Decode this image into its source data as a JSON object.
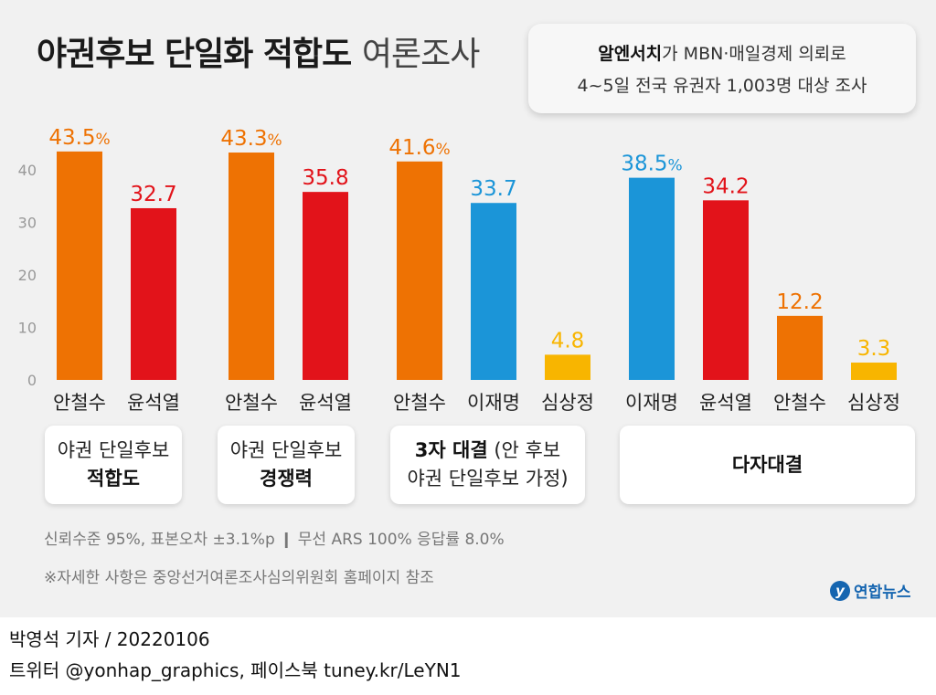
{
  "header": {
    "title_bold": "야권후보 단일화 적합도",
    "title_light": "여론조사"
  },
  "source": {
    "pollster": "알엔서치",
    "line1_rest": "가 MBN·매일경제 의뢰로",
    "line2": "4~5일 전국 유권자 1,003명 대상 조사"
  },
  "colors": {
    "orange": "#EE7203",
    "red": "#E2131A",
    "blue": "#1B95D8",
    "yellow": "#F8B500"
  },
  "chart_data": {
    "type": "bar",
    "ylim": [
      0,
      45
    ],
    "yticks": [
      0,
      10,
      20,
      30,
      40
    ],
    "grid": false,
    "groups": [
      {
        "label_plain": "야권 단일후보",
        "label_bold": "적합도",
        "bars": [
          {
            "name": "안철수",
            "value": 43.5,
            "label": "43.5",
            "suffix": "%",
            "color": "#EE7203"
          },
          {
            "name": "윤석열",
            "value": 32.7,
            "label": "32.7",
            "suffix": "",
            "color": "#E2131A"
          }
        ]
      },
      {
        "label_plain": "야권 단일후보",
        "label_bold": "경쟁력",
        "bars": [
          {
            "name": "안철수",
            "value": 43.3,
            "label": "43.3",
            "suffix": "%",
            "color": "#EE7203"
          },
          {
            "name": "윤석열",
            "value": 35.8,
            "label": "35.8",
            "suffix": "",
            "color": "#E2131A"
          }
        ]
      },
      {
        "label_bold": "3자 대결",
        "label_rest": " (안 후보",
        "label_line2": "야권 단일후보 가정)",
        "bars": [
          {
            "name": "안철수",
            "value": 41.6,
            "label": "41.6",
            "suffix": "%",
            "color": "#EE7203"
          },
          {
            "name": "이재명",
            "value": 33.7,
            "label": "33.7",
            "suffix": "",
            "color": "#1B95D8"
          },
          {
            "name": "심상정",
            "value": 4.8,
            "label": "4.8",
            "suffix": "",
            "color": "#F8B500"
          }
        ]
      },
      {
        "label_bold": "다자대결",
        "bars": [
          {
            "name": "이재명",
            "value": 38.5,
            "label": "38.5",
            "suffix": "%",
            "color": "#1B95D8"
          },
          {
            "name": "윤석열",
            "value": 34.2,
            "label": "34.2",
            "suffix": "",
            "color": "#E2131A"
          },
          {
            "name": "안철수",
            "value": 12.2,
            "label": "12.2",
            "suffix": "",
            "color": "#EE7203"
          },
          {
            "name": "심상정",
            "value": 3.3,
            "label": "3.3",
            "suffix": "",
            "color": "#F8B500"
          }
        ]
      }
    ]
  },
  "notes": {
    "stats": "신뢰수준 95%, 표본오차 ±3.1%p ❙ 무선 ARS 100% 응답률 8.0%",
    "reference": "※자세한 사항은 중앙선거여론조사심의위원회 홈페이지 참조"
  },
  "logo": {
    "mark": "y",
    "text": "연합뉴스"
  },
  "footer": {
    "line1": "박영석 기자 / 20220106",
    "line2": "트위터 @yonhap_graphics, 페이스북 tuney.kr/LeYN1"
  }
}
